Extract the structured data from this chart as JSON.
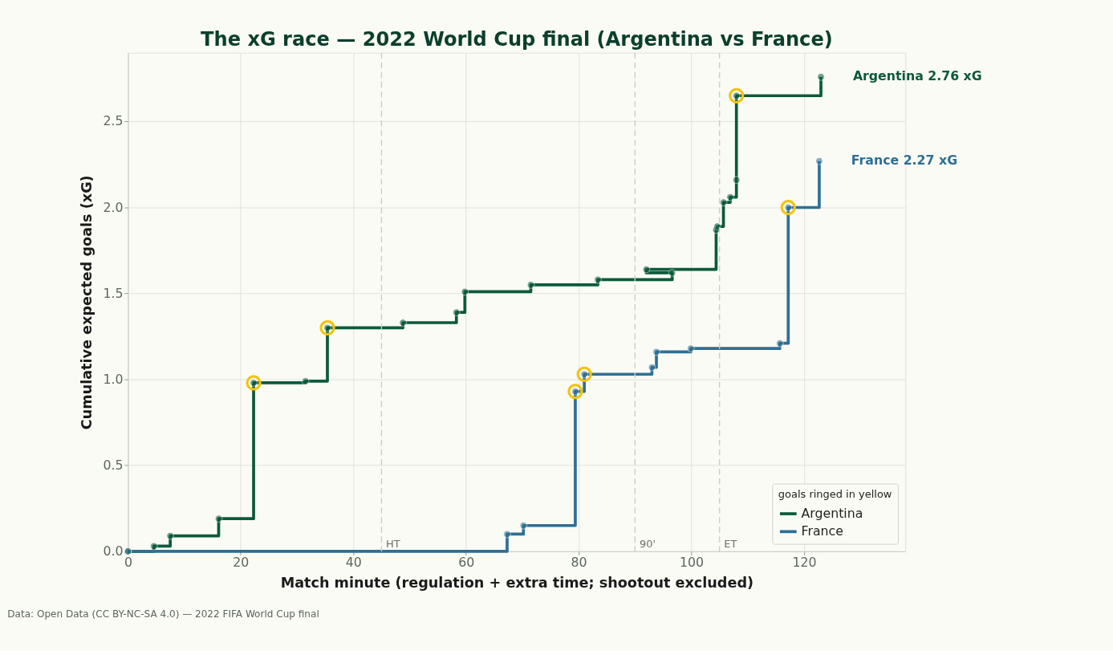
{
  "chart_data": {
    "type": "step",
    "title": "The xG race — 2022 World Cup final (Argentina vs France)",
    "xlabel": "Match minute (regulation + extra time; shootout excluded)",
    "ylabel": "Cumulative expected goals (xG)",
    "legend_title": "goals ringed in yellow",
    "series": [
      {
        "name": "Argentina",
        "color": "#0b5a3c",
        "x": [
          0,
          4.6,
          7.5,
          16.1,
          22.3,
          31.5,
          35.4,
          48.8,
          58.3,
          59.8,
          71.5,
          83.4,
          96.6,
          92.0,
          104.4,
          104.6,
          105.7,
          106.9,
          108.0,
          108.0,
          123.0
        ],
        "values": [
          0,
          0.03,
          0.09,
          0.19,
          0.98,
          0.99,
          1.3,
          1.33,
          1.39,
          1.51,
          1.55,
          1.58,
          1.62,
          1.64,
          1.87,
          1.89,
          2.03,
          2.06,
          2.16,
          2.65,
          2.76
        ]
      },
      {
        "name": "France",
        "color": "#2e6f94",
        "x": [
          0,
          67.3,
          70.2,
          79.4,
          81.0,
          93.0,
          93.8,
          99.9,
          115.7,
          117.2,
          122.7
        ],
        "values": [
          0,
          0.1,
          0.15,
          0.93,
          1.03,
          1.07,
          1.16,
          1.18,
          1.21,
          2.0,
          2.27
        ]
      },
      {
        "type": "scatter",
        "color": "#f2c40f",
        "x": [
          22.3,
          35.4,
          108.0,
          79.4,
          81.0,
          117.2
        ],
        "values": [
          0.98,
          1.3,
          2.65,
          0.93,
          1.03,
          2.0
        ]
      }
    ],
    "xlim": [
      0,
      138
    ],
    "xticks": [
      0,
      20,
      40,
      60,
      80,
      100,
      120
    ],
    "ylim": [
      0,
      2.9
    ],
    "yticks": [
      {
        "value": 0,
        "label": "0.0"
      },
      0.5,
      {
        "value": 1,
        "label": "1.0"
      },
      1.5,
      {
        "value": 2,
        "label": "2.0"
      },
      2.5
    ],
    "ref_lines": [
      {
        "axis": "x",
        "value": 45,
        "label": "HT",
        "color": "#cccccc",
        "line_style": "dashed"
      },
      {
        "axis": "x",
        "value": 90,
        "label": "90'",
        "color": "#cccccc",
        "line_style": "dashed"
      },
      {
        "axis": "x",
        "value": 105,
        "label": "ET",
        "color": "#cccccc",
        "line_style": "dashed"
      }
    ],
    "annotations": [
      {
        "text": "Argentina  2.76 xG",
        "x": 123.0,
        "y": 2.76
      },
      {
        "text": "France  2.27 xG",
        "x": 122.7,
        "y": 2.27
      },
      "Data: Open Data (CC BY-NC-SA 4.0) — 2022 FIFA World Cup final"
    ],
    "grid": true,
    "legend": "bottom right",
    "marker": "circle",
    "line_style": "solid"
  }
}
